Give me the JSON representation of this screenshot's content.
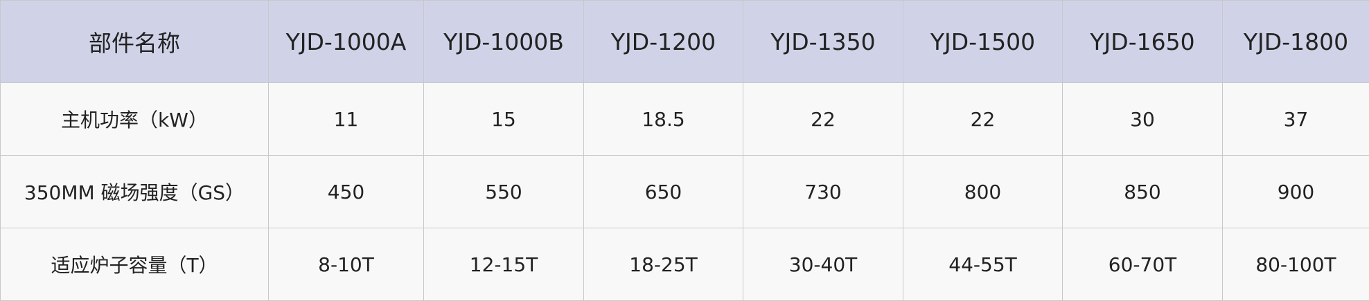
{
  "table": {
    "header": [
      "部件名称",
      "YJD-1000A",
      "YJD-1000B",
      "YJD-1200",
      "YJD-1350",
      "YJD-1500",
      "YJD-1650",
      "YJD-1800"
    ],
    "rows": [
      [
        "主机功率（kW）",
        "11",
        "15",
        "18.5",
        "22",
        "22",
        "30",
        "37"
      ],
      [
        "350MM 磁场强度（GS）",
        "450",
        "550",
        "650",
        "730",
        "800",
        "850",
        "900"
      ],
      [
        "适应炉子容量（T）",
        "8-10T",
        "12-15T",
        "18-25T",
        "30-40T",
        "44-55T",
        "60-70T",
        "80-100T"
      ]
    ]
  }
}
